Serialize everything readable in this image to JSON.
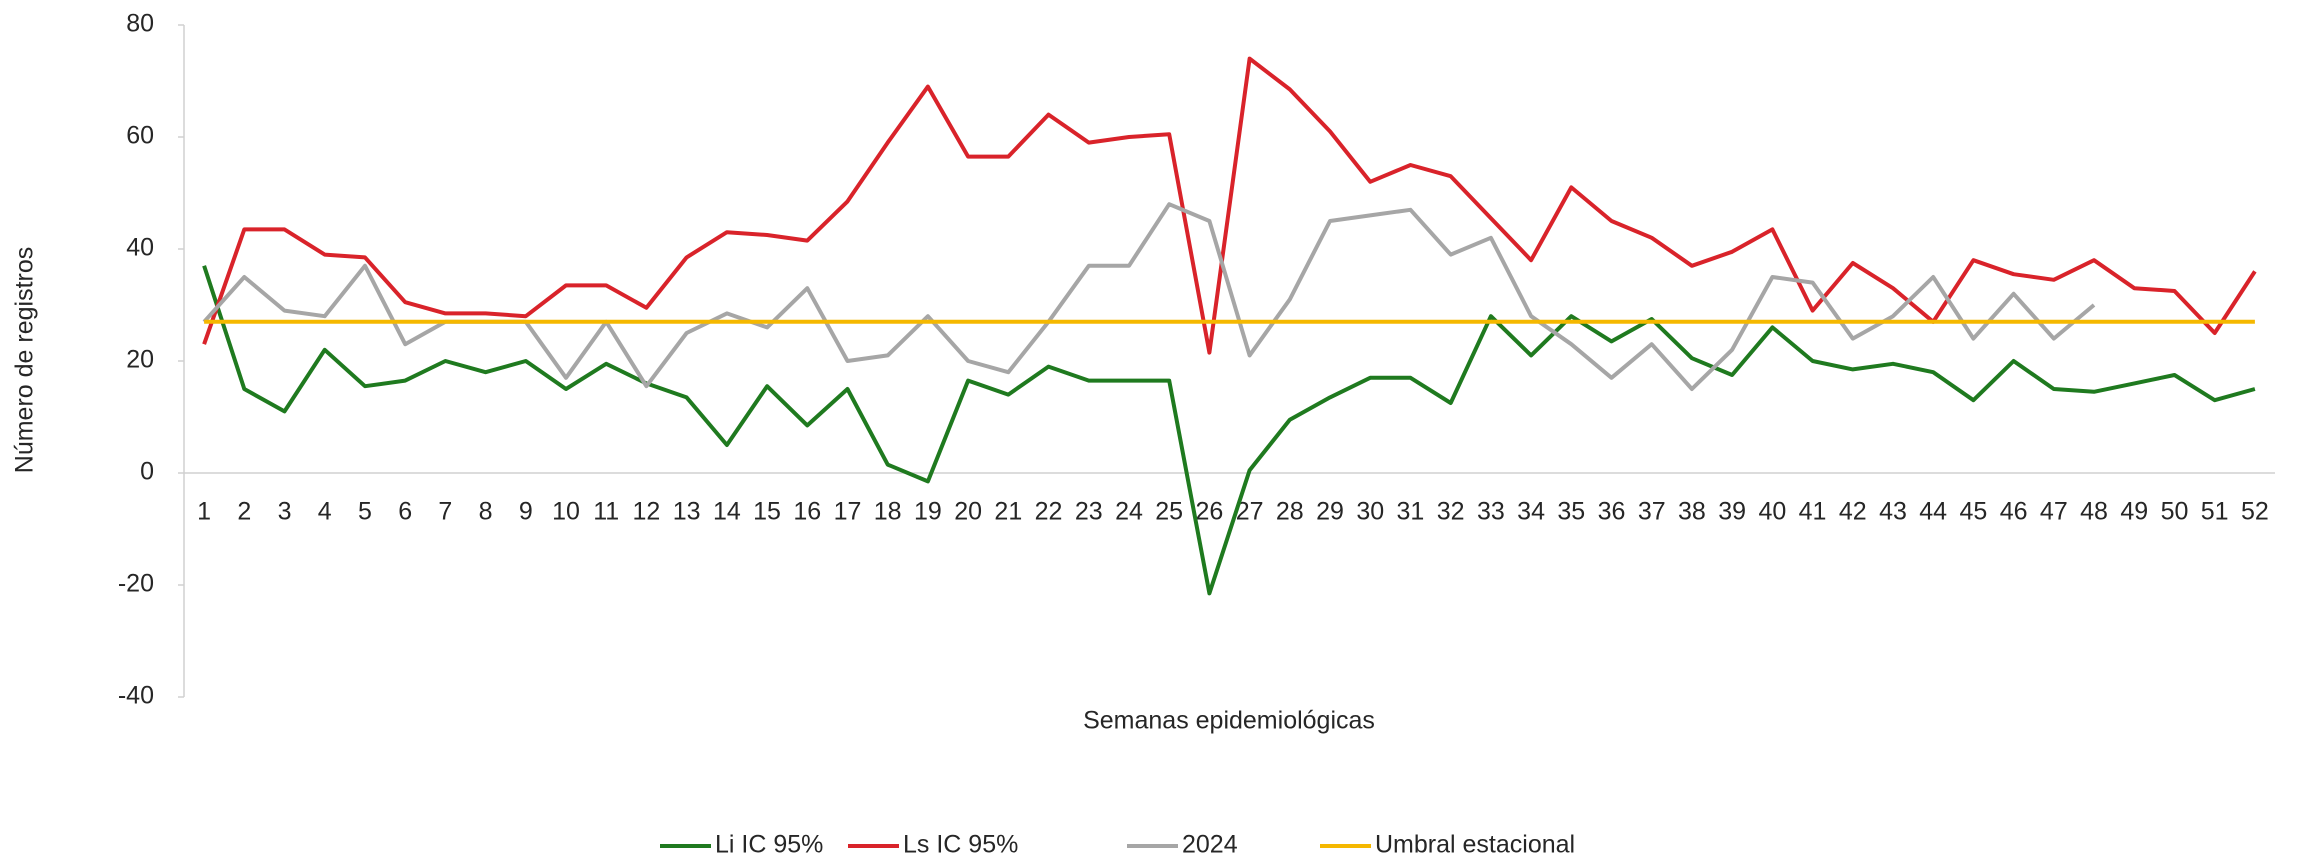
{
  "chart_data": {
    "type": "line",
    "y_label": "Número de registros",
    "x_label": "Semanas epidemiológicas",
    "categories": [
      "1",
      "2",
      "3",
      "4",
      "5",
      "6",
      "7",
      "8",
      "9",
      "10",
      "11",
      "12",
      "13",
      "14",
      "15",
      "16",
      "17",
      "18",
      "19",
      "20",
      "21",
      "22",
      "23",
      "24",
      "25",
      "26",
      "27",
      "28",
      "29",
      "30",
      "31",
      "32",
      "33",
      "34",
      "35",
      "36",
      "37",
      "38",
      "39",
      "40",
      "41",
      "42",
      "43",
      "44",
      "45",
      "46",
      "47",
      "48",
      "49",
      "50",
      "51",
      "52"
    ],
    "ylim": [
      -40,
      80
    ],
    "yticks": [
      -40,
      -20,
      0,
      20,
      40,
      60,
      80
    ],
    "grid": false,
    "legend": "bottom",
    "series": [
      {
        "name": "Li IC 95%",
        "color": "#1f7a1f",
        "values": [
          37,
          15,
          11,
          22,
          15.5,
          16.5,
          20,
          18,
          20,
          15,
          19.5,
          16,
          13.5,
          5,
          15.5,
          8.5,
          15,
          1.5,
          -1.5,
          16.5,
          14,
          19,
          16.5,
          16.5,
          16.5,
          -21.5,
          0.5,
          9.5,
          13.5,
          17,
          17,
          12.5,
          28,
          21,
          28,
          23.5,
          27.5,
          20.5,
          17.5,
          26,
          20,
          18.5,
          19.5,
          18,
          13,
          20,
          15,
          14.5,
          16,
          17.5,
          13,
          15
        ]
      },
      {
        "name": "Ls IC 95%",
        "color": "#d9232a",
        "values": [
          23,
          43.5,
          43.5,
          39,
          38.5,
          30.5,
          28.5,
          28.5,
          28,
          33.5,
          33.5,
          29.5,
          38.5,
          43,
          42.5,
          41.5,
          48.5,
          59,
          69,
          56.5,
          56.5,
          64,
          59,
          60,
          60.5,
          21.5,
          74,
          68.5,
          61,
          52,
          55,
          53,
          45.5,
          38,
          51,
          45,
          42,
          37,
          39.5,
          43.5,
          29,
          37.5,
          33,
          27,
          38,
          35.5,
          34.5,
          38,
          33,
          32.5,
          25,
          36
        ]
      },
      {
        "name": "2024",
        "color": "#a6a6a6",
        "values": [
          27,
          35,
          29,
          28,
          37,
          23,
          27,
          27,
          27,
          17,
          27,
          15.5,
          25,
          28.5,
          26,
          33,
          20,
          21,
          28,
          20,
          18,
          27,
          37,
          37,
          48,
          45,
          21,
          31,
          45,
          46,
          47,
          39,
          42,
          28,
          23,
          17,
          23,
          15,
          22,
          35,
          34,
          24,
          28,
          35,
          24,
          32,
          24,
          30,
          null,
          null,
          null,
          null
        ]
      },
      {
        "name": "Umbral estacional",
        "color": "#f5b800",
        "values": [
          27,
          27,
          27,
          27,
          27,
          27,
          27,
          27,
          27,
          27,
          27,
          27,
          27,
          27,
          27,
          27,
          27,
          27,
          27,
          27,
          27,
          27,
          27,
          27,
          27,
          27,
          27,
          27,
          27,
          27,
          27,
          27,
          27,
          27,
          27,
          27,
          27,
          27,
          27,
          27,
          27,
          27,
          27,
          27,
          27,
          27,
          27,
          27,
          27,
          27,
          27,
          27
        ]
      }
    ]
  }
}
